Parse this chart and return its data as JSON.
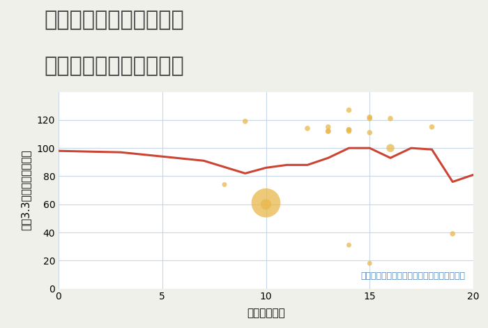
{
  "title_line1": "奈良県奈良市三条桧町の",
  "title_line2": "駅距離別中古戸建て価格",
  "xlabel": "駅距離（分）",
  "ylabel": "坪（3.3㎡）単価（万円）",
  "annotation": "円の大きさは、取引のあった物件面積を示す",
  "background_color": "#f0f0eb",
  "plot_bg_color": "#ffffff",
  "line_color": "#cc4433",
  "line_points_x": [
    0,
    3,
    5,
    7,
    9,
    10,
    11,
    12,
    13,
    14,
    15,
    16,
    17,
    18,
    19,
    20
  ],
  "line_points_y": [
    98,
    97,
    94,
    91,
    82,
    86,
    88,
    88,
    93,
    100,
    100,
    93,
    100,
    99,
    76,
    81
  ],
  "scatter_x": [
    9,
    8,
    10,
    10,
    12,
    13,
    13,
    13,
    14,
    14,
    14,
    14,
    15,
    15,
    15,
    16,
    16,
    18,
    19,
    15,
    14
  ],
  "scatter_y": [
    119,
    74,
    61,
    60,
    114,
    112,
    112,
    115,
    127,
    113,
    112,
    113,
    122,
    121,
    111,
    121,
    100,
    115,
    39,
    18,
    31
  ],
  "scatter_size": [
    30,
    25,
    900,
    120,
    30,
    30,
    30,
    30,
    30,
    30,
    30,
    30,
    30,
    30,
    30,
    30,
    70,
    30,
    30,
    25,
    25
  ],
  "scatter_color": "#e8b84b",
  "scatter_alpha": 0.75,
  "xlim": [
    0,
    20
  ],
  "ylim": [
    0,
    140
  ],
  "yticks": [
    0,
    20,
    40,
    60,
    80,
    100,
    120
  ],
  "xticks": [
    0,
    5,
    10,
    15,
    20
  ],
  "title_fontsize": 22,
  "label_fontsize": 11,
  "tick_fontsize": 10,
  "annotation_fontsize": 9,
  "annotation_color": "#5588bb",
  "grid_color": "#c8d8e8",
  "title_color": "#444444"
}
